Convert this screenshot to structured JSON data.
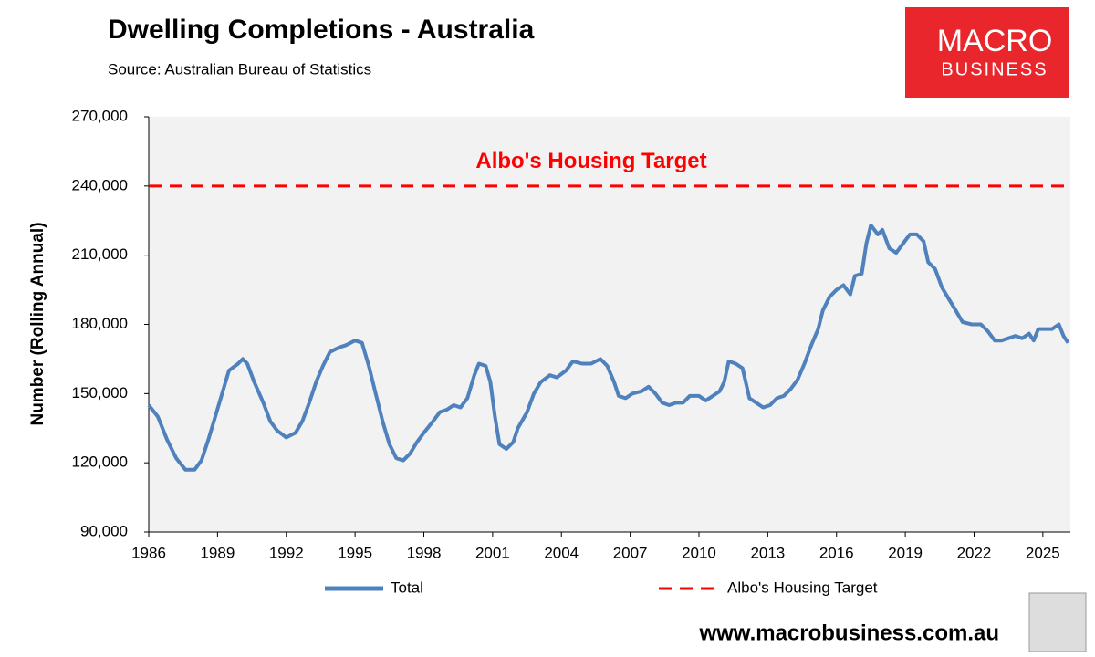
{
  "chart_data": {
    "type": "line",
    "title": "Dwelling Completions - Australia",
    "subtitle": "Source: Australian Bureau of Statistics",
    "y_label": "Number (Rolling Annual)",
    "brand": {
      "line1": "MACRO",
      "line2": "BUSINESS",
      "website": "www.macrobusiness.com.au"
    },
    "x": [
      1986.0,
      1986.4,
      1986.8,
      1987.2,
      1987.6,
      1988.0,
      1988.3,
      1988.6,
      1988.9,
      1989.2,
      1989.5,
      1989.9,
      1990.1,
      1990.3,
      1990.6,
      1991.0,
      1991.3,
      1991.6,
      1992.0,
      1992.4,
      1992.7,
      1993.0,
      1993.3,
      1993.6,
      1993.9,
      1994.3,
      1994.6,
      1995.0,
      1995.3,
      1995.6,
      1995.9,
      1996.2,
      1996.5,
      1996.8,
      1997.1,
      1997.4,
      1997.7,
      1998.0,
      1998.4,
      1998.7,
      1999.0,
      1999.3,
      1999.6,
      1999.9,
      2000.2,
      2000.4,
      2000.7,
      2000.9,
      2001.1,
      2001.3,
      2001.6,
      2001.9,
      2002.1,
      2002.5,
      2002.8,
      2003.1,
      2003.5,
      2003.8,
      2004.2,
      2004.5,
      2004.9,
      2005.3,
      2005.7,
      2006.0,
      2006.3,
      2006.5,
      2006.8,
      2007.1,
      2007.5,
      2007.8,
      2008.1,
      2008.4,
      2008.7,
      2009.0,
      2009.3,
      2009.6,
      2010.0,
      2010.3,
      2010.6,
      2010.9,
      2011.1,
      2011.3,
      2011.6,
      2011.9,
      2012.2,
      2012.5,
      2012.8,
      2013.1,
      2013.4,
      2013.7,
      2014.0,
      2014.3,
      2014.6,
      2014.9,
      2015.2,
      2015.4,
      2015.7,
      2016.0,
      2016.3,
      2016.6,
      2016.8,
      2017.1,
      2017.3,
      2017.5,
      2017.8,
      2018.0,
      2018.3,
      2018.6,
      2018.9,
      2019.2,
      2019.5,
      2019.8,
      2020.0,
      2020.3,
      2020.6,
      2020.9,
      2021.2,
      2021.5,
      2021.9,
      2022.3,
      2022.6,
      2022.9,
      2023.2,
      2023.5,
      2023.8,
      2024.1,
      2024.4,
      2024.6,
      2024.8,
      2025.1,
      2025.4,
      2025.7,
      2025.9,
      2026.1
    ],
    "series": [
      {
        "name": "Total",
        "color": "#4f81bd",
        "values": [
          145000,
          140000,
          130000,
          122000,
          117000,
          117000,
          121000,
          130000,
          140000,
          150000,
          160000,
          163000,
          165000,
          163000,
          155000,
          146000,
          138000,
          134000,
          131000,
          133000,
          138000,
          146000,
          155000,
          162000,
          168000,
          170000,
          171000,
          173000,
          172000,
          162000,
          150000,
          138000,
          128000,
          122000,
          121000,
          124000,
          129000,
          133000,
          138000,
          142000,
          143000,
          145000,
          144000,
          148000,
          158000,
          163000,
          162000,
          155000,
          140000,
          128000,
          126000,
          129000,
          135000,
          142000,
          150000,
          155000,
          158000,
          157000,
          160000,
          164000,
          163000,
          163000,
          165000,
          162000,
          155000,
          149000,
          148000,
          150000,
          151000,
          153000,
          150000,
          146000,
          145000,
          146000,
          146000,
          149000,
          149000,
          147000,
          149000,
          151000,
          155000,
          164000,
          163000,
          161000,
          148000,
          146000,
          144000,
          145000,
          148000,
          149000,
          152000,
          156000,
          163000,
          171000,
          178000,
          186000,
          192000,
          195000,
          197000,
          193000,
          201000,
          202000,
          215000,
          223000,
          219000,
          221000,
          213000,
          211000,
          215000,
          219000,
          219000,
          216000,
          207000,
          204000,
          196000,
          191000,
          186000,
          181000,
          180000,
          180000,
          177000,
          173000,
          173000,
          174000,
          175000,
          174000,
          176000,
          173000,
          178000,
          178000,
          178000,
          180000,
          175000,
          172000
        ]
      }
    ],
    "reference_line": {
      "name": "Albo's Housing Target",
      "value": 240000,
      "color": "#ff0000",
      "annotation": "Albo's Housing Target"
    },
    "xlim": [
      1986,
      2026.2
    ],
    "xticks": [
      1986,
      1989,
      1992,
      1995,
      1998,
      2001,
      2004,
      2007,
      2010,
      2013,
      2016,
      2019,
      2022,
      2025
    ],
    "ylim": [
      90000,
      270000
    ],
    "yticks": [
      {
        "value": 90000,
        "label": "90,000"
      },
      {
        "value": 120000,
        "label": "120,000"
      },
      {
        "value": 150000,
        "label": "150,000"
      },
      {
        "value": 180000,
        "label": "180,000"
      },
      {
        "value": 210000,
        "label": "210,000"
      },
      {
        "value": 240000,
        "label": "240,000"
      },
      {
        "value": 270000,
        "label": "270,000"
      }
    ],
    "legend": "bottom"
  }
}
